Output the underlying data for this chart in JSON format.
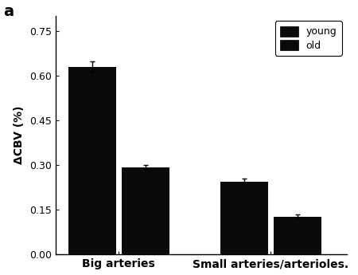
{
  "categories": [
    "Big arteries",
    "Small arteries/arterioles"
  ],
  "young_values": [
    0.63,
    0.245
  ],
  "old_values": [
    0.293,
    0.127
  ],
  "young_errors": [
    0.018,
    0.01
  ],
  "old_errors": [
    0.008,
    0.007
  ],
  "bar_color_young": "#0a0a0a",
  "bar_color_old": "#0a0a0a",
  "ylabel": "ΔCBV (%)",
  "ylim": [
    0,
    0.8
  ],
  "yticks": [
    0.0,
    0.15,
    0.3,
    0.45,
    0.6,
    0.75
  ],
  "panel_label": "a",
  "legend_labels": [
    "young",
    "old"
  ],
  "bar_width": 0.38,
  "background_color": "#ffffff",
  "tick_fontsize": 9,
  "label_fontsize": 10,
  "legend_fontsize": 9,
  "xticklabel_suffix": ".",
  "x_label_2": "Small arteries/arterioles."
}
